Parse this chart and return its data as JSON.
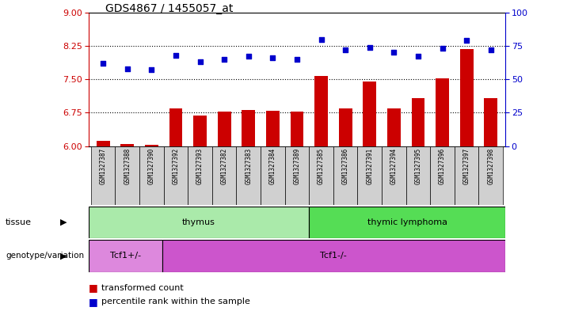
{
  "title": "GDS4867 / 1455057_at",
  "samples": [
    "GSM1327387",
    "GSM1327388",
    "GSM1327390",
    "GSM1327392",
    "GSM1327393",
    "GSM1327382",
    "GSM1327383",
    "GSM1327384",
    "GSM1327389",
    "GSM1327385",
    "GSM1327386",
    "GSM1327391",
    "GSM1327394",
    "GSM1327395",
    "GSM1327396",
    "GSM1327397",
    "GSM1327398"
  ],
  "transformed_count": [
    6.12,
    6.05,
    6.03,
    6.85,
    6.68,
    6.78,
    6.82,
    6.8,
    6.78,
    7.58,
    6.85,
    7.45,
    6.85,
    7.08,
    7.52,
    8.18,
    7.08
  ],
  "percentile_rank": [
    62,
    58,
    57,
    68,
    63,
    65,
    67,
    66,
    65,
    80,
    72,
    74,
    70,
    67,
    73,
    79,
    72
  ],
  "ylim_left": [
    6,
    9
  ],
  "ylim_right": [
    0,
    100
  ],
  "yticks_left": [
    6,
    6.75,
    7.5,
    8.25,
    9
  ],
  "yticks_right": [
    0,
    25,
    50,
    75,
    100
  ],
  "bar_color": "#cc0000",
  "dot_color": "#0000cc",
  "tissue_groups": [
    {
      "label": "thymus",
      "start": 0,
      "end": 9,
      "color": "#aaeaaa"
    },
    {
      "label": "thymic lymphoma",
      "start": 9,
      "end": 17,
      "color": "#55dd55"
    }
  ],
  "genotype_groups": [
    {
      "label": "Tcf1+/-",
      "start": 0,
      "end": 3,
      "color": "#dd88dd"
    },
    {
      "label": "Tcf1-/-",
      "start": 3,
      "end": 17,
      "color": "#cc55cc"
    }
  ],
  "tissue_label": "tissue",
  "genotype_label": "genotype/variation",
  "legend_items": [
    "transformed count",
    "percentile rank within the sample"
  ],
  "axis_left_color": "#cc0000",
  "axis_right_color": "#0000cc",
  "background_color": "#ffffff",
  "xtick_box_color": "#d0d0d0",
  "bar_width": 0.55
}
